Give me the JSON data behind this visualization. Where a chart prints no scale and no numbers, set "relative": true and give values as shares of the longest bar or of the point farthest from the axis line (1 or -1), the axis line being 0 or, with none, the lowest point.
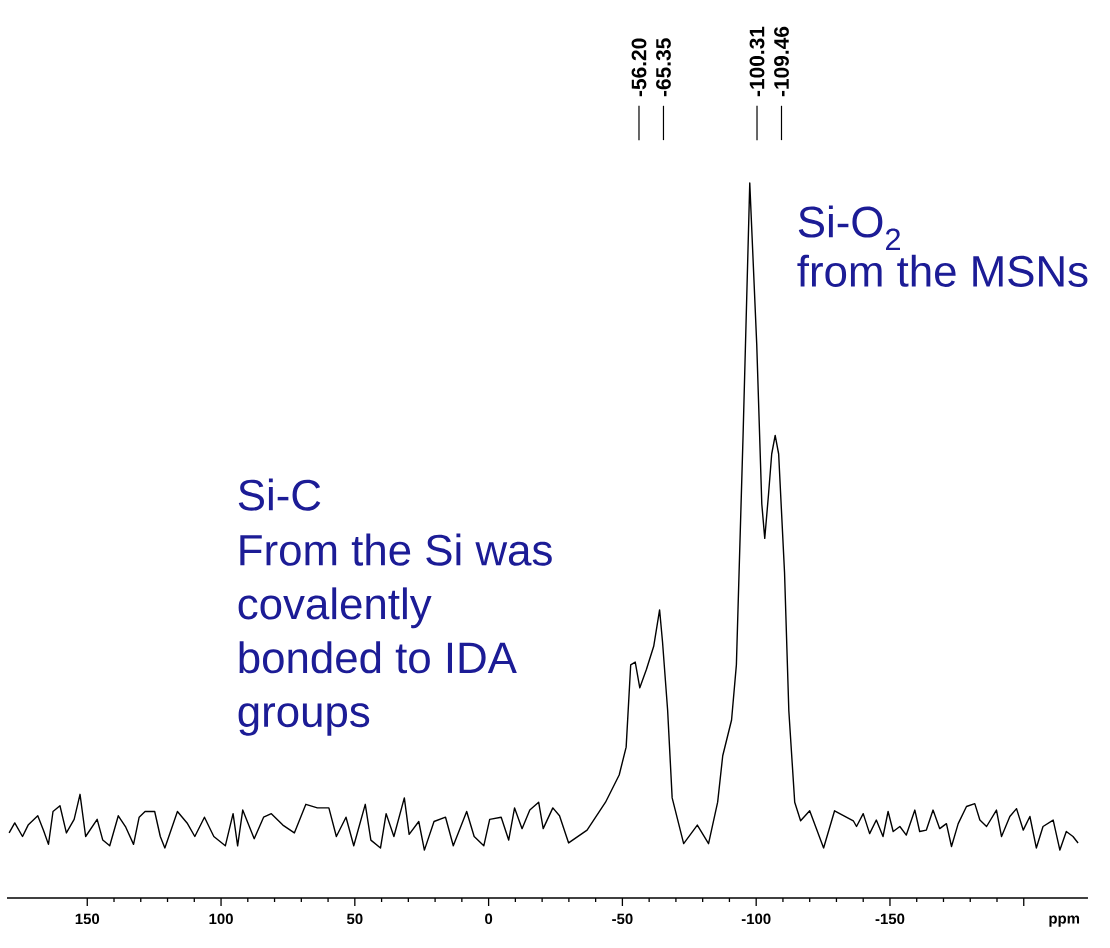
{
  "chart_data": {
    "type": "line",
    "relative": true,
    "xlabel": "ppm",
    "xlim": [
      180,
      -224
    ],
    "xticks": [
      150,
      100,
      50,
      0,
      -50,
      -100,
      -150,
      {
        "value": -200,
        "label": null
      }
    ],
    "annotations": [
      {
        "text": "-56.20",
        "x": -56.2
      },
      {
        "text": "-65.35",
        "x": -65.35
      },
      {
        "text": "-100.31",
        "x": -100.31
      },
      {
        "text": "-109.46",
        "x": -109.46
      },
      "Si-O$_{2}$",
      "from the MSNs",
      "Si-C",
      "From the Si was covalently bonded to IDA groups"
    ],
    "x": [
      179.2,
      177.1,
      174.2,
      172.1,
      168.5,
      166.3,
      164.5,
      162.8,
      160.2,
      157.8,
      154.9,
      152.7,
      150.6,
      146.3,
      144.2,
      141.6,
      138.4,
      135.6,
      132.7,
      130.6,
      128.4,
      124.8,
      122.7,
      121.0,
      116.3,
      112.7,
      109.8,
      106.2,
      102.7,
      98.4,
      95.5,
      93.8,
      91.9,
      87.6,
      84.1,
      81.2,
      76.9,
      72.6,
      68.3,
      64.0,
      59.7,
      56.9,
      53.3,
      50.4,
      46.1,
      44.0,
      40.4,
      38.3,
      35.4,
      31.5,
      29.7,
      26.1,
      24.0,
      20.4,
      16.1,
      13.2,
      8.2,
      5.4,
      1.8,
      -0.4,
      -4.7,
      -7.5,
      -9.7,
      -12.5,
      -15.4,
      -18.7,
      -20.4,
      -24.0,
      -26.5,
      -29.9,
      -36.8,
      -43.7,
      -48.8,
      -51.4,
      -53.1,
      -54.8,
      -56.5,
      -59.0,
      -61.7,
      -63.9,
      -65.0,
      -66.9,
      -68.6,
      -72.9,
      -78.0,
      -82.2,
      -85.6,
      -87.5,
      -90.8,
      -92.6,
      -95.1,
      -97.6,
      -100.2,
      -102.1,
      -103.2,
      -104.6,
      -105.8,
      -107.1,
      -108.4,
      -110.6,
      -112.2,
      -114.4,
      -116.6,
      -120.0,
      -125.2,
      -129.3,
      -136.3,
      -137.5,
      -140.0,
      -142.4,
      -144.9,
      -147.4,
      -149.3,
      -151.2,
      -153.7,
      -156.1,
      -159.3,
      -161.1,
      -163.6,
      -166.1,
      -168.6,
      -171.1,
      -173.0,
      -175.5,
      -178.6,
      -181.7,
      -183.6,
      -186.1,
      -189.8,
      -191.7,
      -194.8,
      -197.3,
      -199.8,
      -202.3,
      -204.7,
      -207.2,
      -211.0,
      -213.5,
      -215.9,
      -218.4,
      -220.3
    ],
    "series": [
      {
        "color": "#000000",
        "values": [
          0.091,
          0.105,
          0.086,
          0.102,
          0.115,
          0.094,
          0.075,
          0.121,
          0.129,
          0.091,
          0.11,
          0.145,
          0.086,
          0.11,
          0.081,
          0.073,
          0.115,
          0.099,
          0.075,
          0.113,
          0.121,
          0.121,
          0.086,
          0.07,
          0.121,
          0.105,
          0.086,
          0.113,
          0.086,
          0.073,
          0.118,
          0.073,
          0.123,
          0.083,
          0.113,
          0.118,
          0.102,
          0.091,
          0.131,
          0.126,
          0.126,
          0.086,
          0.113,
          0.073,
          0.131,
          0.081,
          0.07,
          0.118,
          0.086,
          0.14,
          0.089,
          0.107,
          0.067,
          0.107,
          0.113,
          0.073,
          0.121,
          0.086,
          0.073,
          0.11,
          0.113,
          0.081,
          0.126,
          0.097,
          0.123,
          0.134,
          0.097,
          0.126,
          0.115,
          0.077,
          0.095,
          0.134,
          0.172,
          0.211,
          0.326,
          0.33,
          0.294,
          0.32,
          0.352,
          0.403,
          0.358,
          0.263,
          0.14,
          0.076,
          0.102,
          0.076,
          0.134,
          0.199,
          0.249,
          0.326,
          0.647,
          1.0,
          0.775,
          0.551,
          0.503,
          0.564,
          0.621,
          0.647,
          0.621,
          0.455,
          0.262,
          0.134,
          0.108,
          0.122,
          0.07,
          0.122,
          0.108,
          0.1,
          0.118,
          0.09,
          0.109,
          0.086,
          0.121,
          0.093,
          0.1,
          0.088,
          0.123,
          0.093,
          0.095,
          0.123,
          0.097,
          0.104,
          0.072,
          0.104,
          0.128,
          0.132,
          0.109,
          0.1,
          0.123,
          0.086,
          0.114,
          0.125,
          0.095,
          0.114,
          0.07,
          0.1,
          0.109,
          0.067,
          0.093,
          0.086,
          0.077
        ]
      }
    ]
  }
}
